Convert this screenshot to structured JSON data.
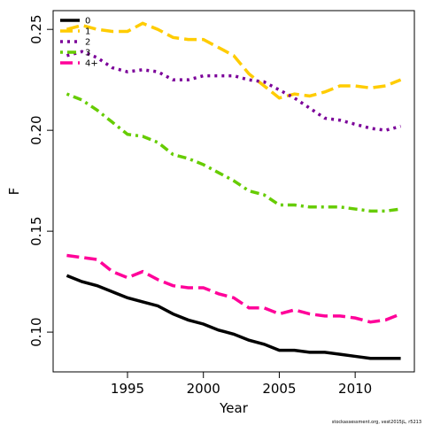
{
  "chart_data": {
    "type": "line",
    "x_label": "Year",
    "y_label": "F",
    "footnote": "stockassessment.org, vest2015jL, r5213",
    "x": [
      1991,
      1992,
      1993,
      1994,
      1995,
      1996,
      1997,
      1998,
      1999,
      2000,
      2001,
      2002,
      2003,
      2004,
      2005,
      2006,
      2007,
      2008,
      2009,
      2010,
      2011,
      2012,
      2013
    ],
    "series": [
      {
        "name": "0",
        "color": "#000000",
        "dash": "solid",
        "values": [
          0.128,
          0.125,
          0.123,
          0.12,
          0.117,
          0.115,
          0.113,
          0.109,
          0.106,
          0.104,
          0.101,
          0.099,
          0.096,
          0.094,
          0.091,
          0.091,
          0.09,
          0.09,
          0.089,
          0.088,
          0.087,
          0.087,
          0.087
        ]
      },
      {
        "name": "1",
        "color": "#FFCC00",
        "dash": "longdash",
        "values": [
          0.25,
          0.252,
          0.25,
          0.249,
          0.249,
          0.253,
          0.25,
          0.246,
          0.245,
          0.245,
          0.241,
          0.237,
          0.228,
          0.222,
          0.216,
          0.218,
          0.217,
          0.219,
          0.222,
          0.222,
          0.221,
          0.222,
          0.225
        ]
      },
      {
        "name": "2",
        "color": "#7B0099",
        "dash": "dotted",
        "values": [
          0.237,
          0.239,
          0.236,
          0.231,
          0.229,
          0.23,
          0.229,
          0.225,
          0.225,
          0.227,
          0.227,
          0.227,
          0.225,
          0.224,
          0.22,
          0.216,
          0.211,
          0.206,
          0.205,
          0.203,
          0.201,
          0.2,
          0.202
        ]
      },
      {
        "name": "3",
        "color": "#66CC00",
        "dash": "dotdash",
        "values": [
          0.218,
          0.215,
          0.21,
          0.204,
          0.198,
          0.197,
          0.194,
          0.188,
          0.186,
          0.183,
          0.179,
          0.175,
          0.17,
          0.168,
          0.163,
          0.163,
          0.162,
          0.162,
          0.162,
          0.161,
          0.16,
          0.16,
          0.161
        ]
      },
      {
        "name": "4+",
        "color": "#FF0099",
        "dash": "longdash",
        "values": [
          0.138,
          0.137,
          0.136,
          0.13,
          0.127,
          0.13,
          0.126,
          0.123,
          0.122,
          0.122,
          0.119,
          0.117,
          0.112,
          0.112,
          0.109,
          0.111,
          0.109,
          0.108,
          0.108,
          0.107,
          0.105,
          0.106,
          0.109
        ]
      }
    ],
    "xlim": [
      1990.1,
      2013.9
    ],
    "ylim": [
      0.0803,
      0.2593
    ],
    "xticks": [
      1995,
      2000,
      2005,
      2010
    ],
    "yticks": [
      {
        "value": 0.1,
        "label": "0.10"
      },
      0.15,
      {
        "value": 0.2,
        "label": "0.20"
      },
      0.25
    ],
    "legend": "topleft"
  }
}
